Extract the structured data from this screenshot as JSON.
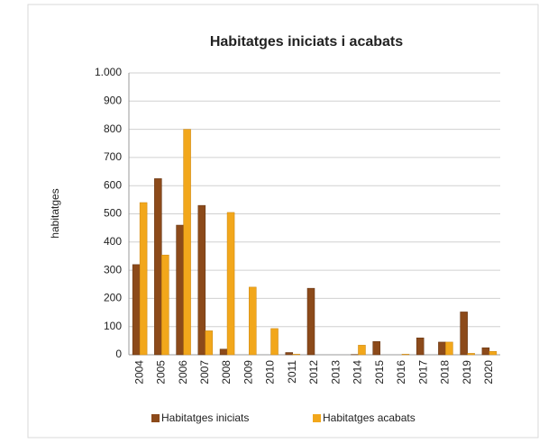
{
  "chart_data": {
    "type": "bar",
    "title": "Habitatges iniciats i acabats",
    "ylabel": "habitatges",
    "categories": [
      "2004",
      "2005",
      "2006",
      "2007",
      "2008",
      "2009",
      "2010",
      "2011",
      "2012",
      "2013",
      "2014",
      "2015",
      "2016",
      "2017",
      "2018",
      "2019",
      "2020"
    ],
    "series": [
      {
        "name": "Habitatges iniciats",
        "color": "#8c4a1a",
        "values": [
          320,
          625,
          460,
          530,
          20,
          0,
          0,
          8,
          236,
          0,
          1,
          47,
          0,
          60,
          45,
          152,
          25
        ]
      },
      {
        "name": "Habitatges acabats",
        "color": "#f2a71b",
        "values": [
          540,
          354,
          800,
          85,
          505,
          240,
          93,
          2,
          0,
          0,
          34,
          0,
          2,
          0,
          45,
          5,
          12
        ]
      }
    ],
    "ylim": [
      0,
      1000
    ],
    "yticks": [
      0,
      100,
      200,
      300,
      400,
      500,
      600,
      700,
      800,
      900,
      {
        "value": 1000,
        "label": "1.000"
      }
    ],
    "grid": true,
    "legend": "bottom"
  }
}
